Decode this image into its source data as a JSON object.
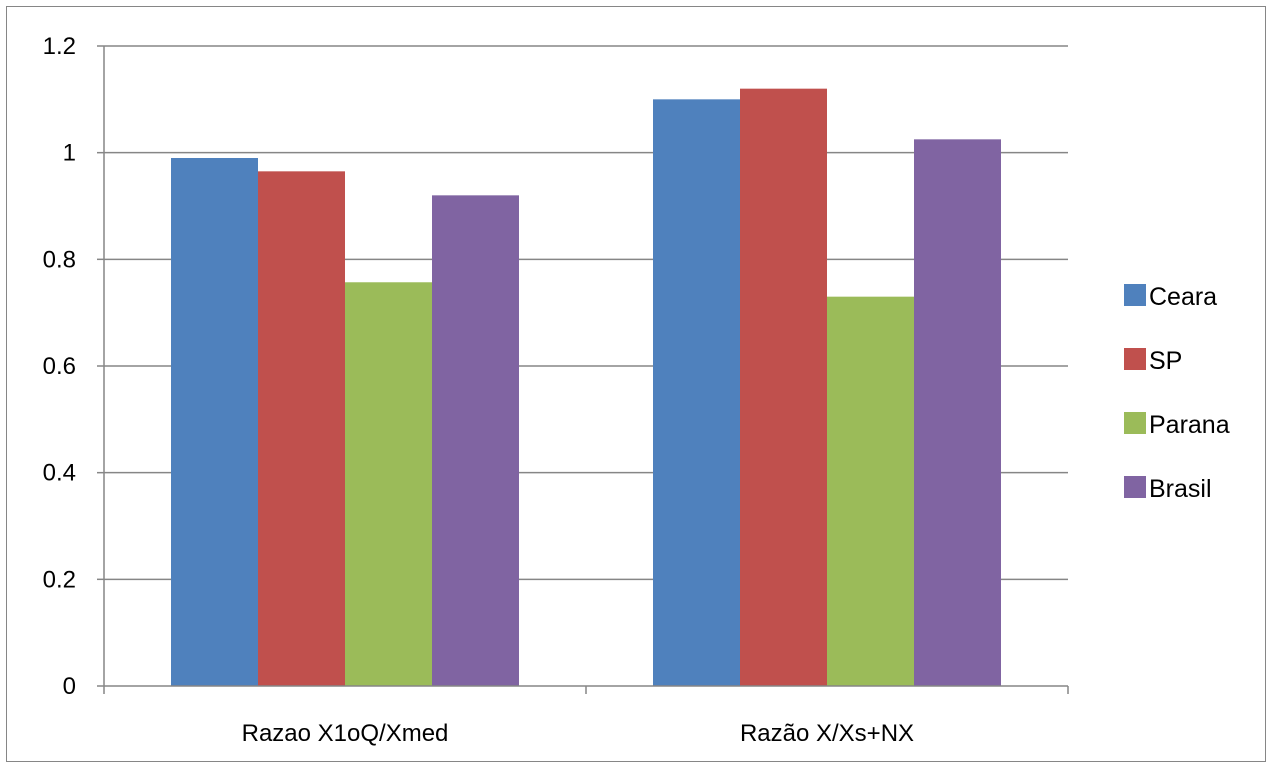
{
  "chart_data": {
    "type": "bar",
    "title": "",
    "xlabel": "",
    "ylabel": "",
    "categories": [
      "Razao X1oQ/Xmed",
      "Razão X/Xs+NX"
    ],
    "series": [
      {
        "name": "Ceara",
        "color": "#4F81BD",
        "values": [
          0.99,
          1.1
        ]
      },
      {
        "name": "SP",
        "color": "#C0504D",
        "values": [
          0.965,
          1.12
        ]
      },
      {
        "name": "Parana",
        "color": "#9BBB59",
        "values": [
          0.757,
          0.73
        ]
      },
      {
        "name": "Brasil",
        "color": "#8064A2",
        "values": [
          0.92,
          1.025
        ]
      }
    ],
    "ylim": [
      0,
      1.2
    ],
    "yticks": [
      "0",
      "0.2",
      "0.4",
      "0.6",
      "0.8",
      "1",
      "1.2"
    ],
    "grid": true,
    "legend_position": "right"
  }
}
